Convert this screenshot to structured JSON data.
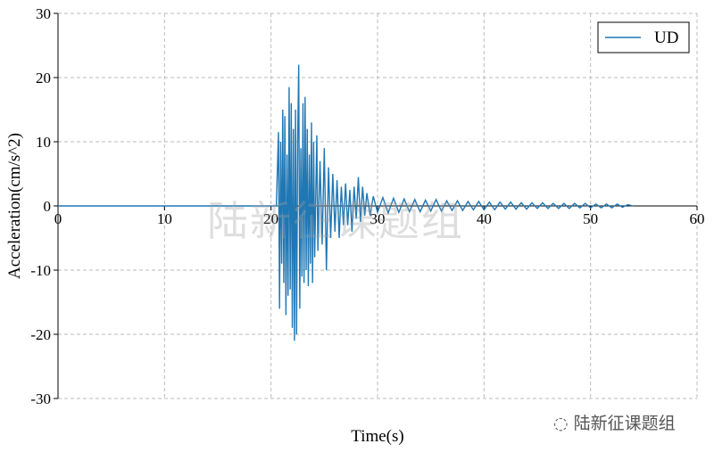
{
  "chart_data": {
    "type": "line",
    "title": "",
    "xlabel": "Time(s)",
    "ylabel": "Acceleration(cm/s^2)",
    "xlim": [
      0,
      60
    ],
    "ylim": [
      -30,
      30
    ],
    "xticks": [
      0,
      10,
      20,
      30,
      40,
      50,
      60
    ],
    "yticks": [
      -30,
      -20,
      -10,
      0,
      10,
      20,
      30
    ],
    "grid": true,
    "legend_position": "top-right",
    "series": [
      {
        "name": "UD",
        "color": "#1f77b4",
        "points": [
          [
            0,
            0
          ],
          [
            20.5,
            0
          ],
          [
            20.7,
            11.5
          ],
          [
            20.8,
            -16
          ],
          [
            20.9,
            10
          ],
          [
            21.0,
            -9
          ],
          [
            21.1,
            15
          ],
          [
            21.2,
            -12
          ],
          [
            21.3,
            14
          ],
          [
            21.4,
            -17
          ],
          [
            21.5,
            8
          ],
          [
            21.6,
            -14
          ],
          [
            21.7,
            18.5
          ],
          [
            21.8,
            -13
          ],
          [
            21.9,
            16
          ],
          [
            22.0,
            -19
          ],
          [
            22.1,
            12
          ],
          [
            22.2,
            -21
          ],
          [
            22.3,
            15
          ],
          [
            22.4,
            -20
          ],
          [
            22.5,
            10
          ],
          [
            22.6,
            22
          ],
          [
            22.7,
            -16
          ],
          [
            22.8,
            9
          ],
          [
            22.9,
            -11
          ],
          [
            23.0,
            16
          ],
          [
            23.1,
            -12
          ],
          [
            23.2,
            17
          ],
          [
            23.3,
            -10
          ],
          [
            23.4,
            12
          ],
          [
            23.5,
            -12.5
          ],
          [
            23.6,
            8
          ],
          [
            23.7,
            -9
          ],
          [
            23.8,
            13
          ],
          [
            23.9,
            -12
          ],
          [
            24.0,
            10
          ],
          [
            24.1,
            -8
          ],
          [
            24.3,
            11
          ],
          [
            24.4,
            -7
          ],
          [
            24.6,
            7
          ],
          [
            24.8,
            -6
          ],
          [
            25.0,
            9
          ],
          [
            25.2,
            -10
          ],
          [
            25.4,
            6
          ],
          [
            25.6,
            -5
          ],
          [
            25.8,
            5
          ],
          [
            26.0,
            -4
          ],
          [
            26.2,
            4
          ],
          [
            26.4,
            -5
          ],
          [
            26.6,
            3
          ],
          [
            26.8,
            -3
          ],
          [
            27.0,
            3.5
          ],
          [
            27.2,
            -3
          ],
          [
            27.4,
            2.5
          ],
          [
            27.6,
            -4
          ],
          [
            27.8,
            3
          ],
          [
            28.0,
            -2
          ],
          [
            28.2,
            4.5
          ],
          [
            28.4,
            -2.5
          ],
          [
            28.6,
            3
          ],
          [
            28.8,
            -1.5
          ],
          [
            29.0,
            2
          ],
          [
            29.3,
            -1.5
          ],
          [
            29.6,
            1.5
          ],
          [
            30.0,
            -1
          ],
          [
            30.5,
            1.3
          ],
          [
            31.0,
            -1.1
          ],
          [
            31.5,
            1.2
          ],
          [
            32.0,
            -1.0
          ],
          [
            32.5,
            1.1
          ],
          [
            33.0,
            -0.9
          ],
          [
            33.5,
            1.0
          ],
          [
            34.0,
            -0.9
          ],
          [
            34.5,
            0.9
          ],
          [
            35.0,
            -0.8
          ],
          [
            35.5,
            1.0
          ],
          [
            36.0,
            -0.8
          ],
          [
            36.5,
            0.8
          ],
          [
            37.0,
            -0.7
          ],
          [
            37.5,
            0.8
          ],
          [
            38.0,
            -0.7
          ],
          [
            38.5,
            0.7
          ],
          [
            39.0,
            -0.6
          ],
          [
            39.5,
            0.7
          ],
          [
            40.0,
            -0.6
          ],
          [
            40.5,
            0.6
          ],
          [
            41.0,
            -0.6
          ],
          [
            41.5,
            0.6
          ],
          [
            42.0,
            -0.5
          ],
          [
            42.5,
            0.6
          ],
          [
            43.0,
            -0.5
          ],
          [
            43.5,
            0.5
          ],
          [
            44.0,
            -0.5
          ],
          [
            44.5,
            0.5
          ],
          [
            45.0,
            -0.4
          ],
          [
            45.5,
            0.5
          ],
          [
            46.0,
            -0.4
          ],
          [
            46.5,
            0.4
          ],
          [
            47.0,
            -0.4
          ],
          [
            47.5,
            0.4
          ],
          [
            48.0,
            -0.4
          ],
          [
            48.5,
            0.4
          ],
          [
            49.0,
            -0.3
          ],
          [
            49.5,
            0.4
          ],
          [
            50.0,
            -0.3
          ],
          [
            50.5,
            0.3
          ],
          [
            51.0,
            -0.3
          ],
          [
            51.5,
            0.3
          ],
          [
            52.0,
            -0.3
          ],
          [
            52.5,
            0.3
          ],
          [
            53.0,
            -0.2
          ],
          [
            53.5,
            0.2
          ],
          [
            54.0,
            0
          ]
        ]
      }
    ]
  },
  "watermark": "陆新征课题组",
  "brand": "陆新征课题组"
}
